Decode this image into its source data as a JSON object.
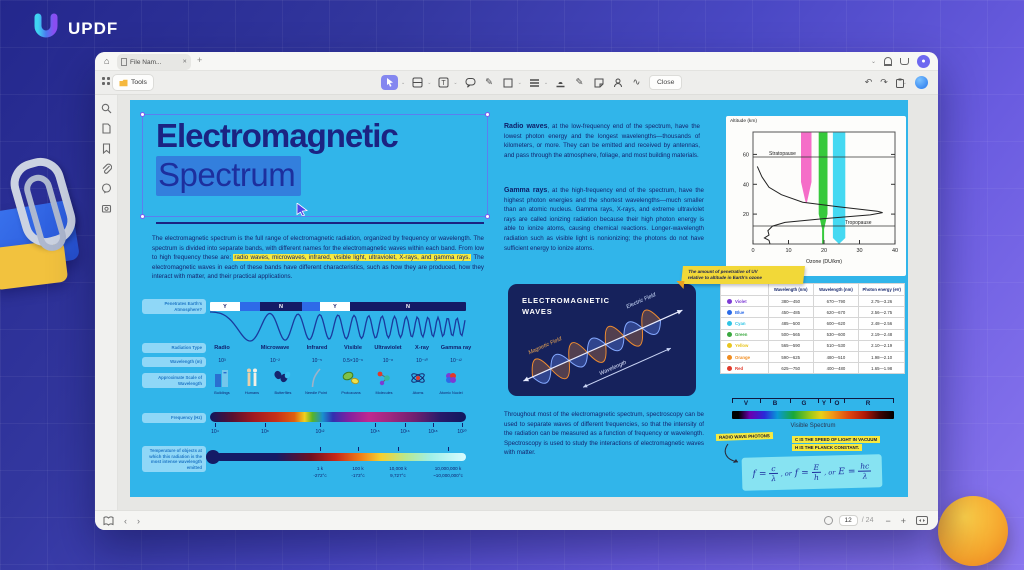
{
  "brand": {
    "logo_text": "UPDF"
  },
  "icons": {
    "home": "⌂",
    "plus": "+",
    "close_x": "✕",
    "chevron_down": "⌄",
    "undo": "↶",
    "redo": "↷",
    "caret_left": "‹",
    "caret_right": "›",
    "minus": "−",
    "plus2": "+",
    "wave": "∿",
    "pen": "✎"
  },
  "window": {
    "tab_title": "File Nam...",
    "tools_label": "Tools",
    "close_label": "Close",
    "page_current": "12",
    "page_total": "/ 24"
  },
  "page": {
    "title_line1": "Electromagnetic",
    "title_line2": "Spectrum",
    "intro_pre": "The electromagnetic spectrum is the full range of electromagnetic radiation, organized by frequency or wavelength. The spectrum is divided into separate bands, with different names for the electromagnetic waves within each band. From low to high frequency these are: ",
    "intro_hl": "radio waves, microwaves, infrared, visible light, ultraviolet, X-rays, and gamma rays.",
    "intro_post": " The electromagnetic waves in each of these bands have different characteristics, such as how they are produced, how they interact with matter, and their practical applications.",
    "infographic": {
      "row_labels": [
        "Penetrates Earth's Atmosphere?",
        "Radiation Type",
        "Wavelength (m)",
        "Approximate Scale of Wavelength",
        "Frequency (Hz)",
        "Temperature of objects at which this radiation is the most intense wavelength emitted"
      ],
      "atmosphere_segments": [
        "Y",
        "",
        "N",
        "",
        "Y",
        "N"
      ],
      "bands": [
        {
          "name": "Radio",
          "wl": "10³"
        },
        {
          "name": "Microwave",
          "wl": "10⁻²"
        },
        {
          "name": "Infrared",
          "wl": "10⁻⁵"
        },
        {
          "name": "Visible",
          "wl": "0.5×10⁻⁶"
        },
        {
          "name": "Ultraviolet",
          "wl": "10⁻⁸"
        },
        {
          "name": "X-ray",
          "wl": "10⁻¹⁰"
        },
        {
          "name": "Gamma ray",
          "wl": "10⁻¹²"
        }
      ],
      "scale_items": [
        "Buildings",
        "Humans",
        "Butterflies",
        "Needle Point",
        "Protozoans",
        "Molecules",
        "Atoms",
        "Atomic Nuclei"
      ],
      "frequency_ticks": [
        "10⁴",
        "10⁸",
        "10¹²",
        "10¹⁵",
        "10¹⁶",
        "10¹⁸",
        "10²⁰"
      ],
      "temperature_ticks": [
        {
          "k": "1 k",
          "c": "-272°c"
        },
        {
          "k": "100 k",
          "c": "-173°c"
        },
        {
          "k": "10,000 k",
          "c": "9,727°c"
        },
        {
          "k": "10,000,000 k",
          "c": "~10,000,000°c"
        }
      ]
    },
    "radio_heading": "Radio waves",
    "radio_text": ", at the low-frequency end of the spectrum, have the lowest photon energy and the longest wavelengths—thousands of kilometers, or more. They can be emitted and received by antennas, and pass through the atmosphere, foliage, and most building materials.",
    "gamma_heading": "Gamma rays",
    "gamma_text": ", at the high-frequency end of the spectrum, have the highest photon energies and the shortest wavelengths—much smaller than an atomic nucleus. Gamma rays, X-rays, and extreme ultraviolet rays are called ionizing radiation because their high photon energy is able to ionize atoms, causing chemical reactions. Longer-wavelength radiation such as visible light is nonionizing; the photons do not have sufficient energy to ionize atoms.",
    "em_box": {
      "title_line1": "ELECTROMAGNETIC",
      "title_line2": "WAVES",
      "magnetic": "Magnetic Field",
      "electric": "Electric Field",
      "wavelength": "Wavelength"
    },
    "spectroscopy_text": "Throughout most of the electromagnetic spectrum, spectroscopy can be used to separate waves of different frequencies, so that the intensity of the radiation can be measured as a function of frequency or wavelength. Spectroscopy is used to study the interactions of electromagnetic waves with matter.",
    "chart": {
      "altitude_label": "Altitude (km)",
      "ozone_label": "Ozone (DU/km)",
      "stratopause": "Stratopause",
      "tropopause": "Tropopause",
      "y_ticks": [
        "60",
        "40",
        "20"
      ],
      "x_ticks": [
        "0",
        "10",
        "20",
        "30",
        "40"
      ]
    },
    "note_line1": "The amount of penetrative of UV",
    "note_line2": "relative to altitude in Earth's ozone",
    "color_table": {
      "headers": [
        "Wavelength (nm)",
        "Wavelength (nm)",
        "Photon energy (eV)"
      ],
      "rows": [
        {
          "name": "Violet",
          "dot": "#7d3bd4",
          "w1": "380—450",
          "w2": "670—790",
          "e": "2.75—3.26"
        },
        {
          "name": "Blue",
          "dot": "#2b6be8",
          "w1": "450—485",
          "w2": "620—670",
          "e": "2.56—2.75"
        },
        {
          "name": "Cyan",
          "dot": "#2fc4e4",
          "w1": "485—500",
          "w2": "600—620",
          "e": "2.48—2.56"
        },
        {
          "name": "Green",
          "dot": "#3aa83f",
          "w1": "500—565",
          "w2": "530—600",
          "e": "2.19—2.48"
        },
        {
          "name": "Yellow",
          "dot": "#e8c51f",
          "w1": "565—590",
          "w2": "510—530",
          "e": "2.10—2.19"
        },
        {
          "name": "Orange",
          "dot": "#f08c1f",
          "w1": "590—625",
          "w2": "480—510",
          "e": "1.98—2.10"
        },
        {
          "name": "Red",
          "dot": "#e0392b",
          "w1": "625—750",
          "w2": "400—480",
          "e": "1.65—1.98"
        }
      ]
    },
    "visible": {
      "letters": [
        "V",
        "B",
        "G",
        "Y",
        "O",
        "R"
      ],
      "caption": "Visible Spectrum"
    },
    "ann_radio": "RADIO WAVE PHOTONS",
    "ann_c": "C IS THE SPEED OF LIGHT IN VACUUM",
    "ann_h": "H IS THE PLANCK CONSTANT.",
    "formula": {
      "f": "f",
      "eq": "=",
      "or": ", or",
      "E": "E",
      "f1t": "c",
      "f1b": "λ",
      "f2t": "E",
      "f2b": "h",
      "f3t": "hc",
      "f3b": "λ"
    }
  }
}
